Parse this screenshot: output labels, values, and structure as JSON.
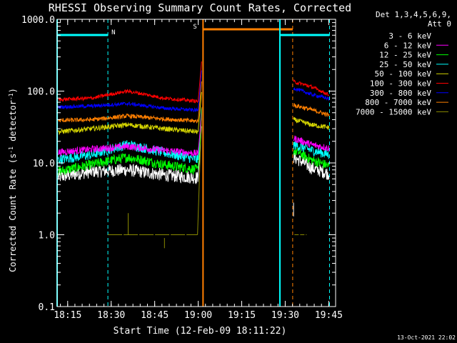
{
  "chart_data": {
    "type": "line",
    "title": "RHESSI Observing Summary Count Rates, Corrected",
    "xlabel": "Start Time (12-Feb-09 18:11:22)",
    "ylabel": "Corrected Count Rate (s⁻¹ detector⁻¹)",
    "ylabel_parts": {
      "prefix": "Corrected Count Rate (s",
      "exp1": "-1",
      "mid": " detector",
      "exp2": "-1",
      "suffix": ")"
    },
    "y_scale": "log",
    "ylim": [
      0.1,
      1000
    ],
    "xlim_minutes": [
      0,
      96
    ],
    "x_ticks": [
      {
        "m": 3.633,
        "label": "18:15"
      },
      {
        "m": 18.633,
        "label": "18:30"
      },
      {
        "m": 33.633,
        "label": "18:45"
      },
      {
        "m": 48.633,
        "label": "19:00"
      },
      {
        "m": 63.633,
        "label": "19:15"
      },
      {
        "m": 78.633,
        "label": "19:30"
      },
      {
        "m": 93.633,
        "label": "19:45"
      }
    ],
    "y_ticks": [
      {
        "v": 0.1,
        "label": "0.1"
      },
      {
        "v": 1,
        "label": "1.0"
      },
      {
        "v": 10,
        "label": "10.0"
      },
      {
        "v": 100,
        "label": "100.0"
      },
      {
        "v": 1000,
        "label": "1000.0"
      }
    ],
    "legend": {
      "position": "top-right",
      "header1": "Det 1,3,4,5,6,9,",
      "header2": "Att 0",
      "entries": [
        {
          "label": "3 - 6 keV",
          "color": "#ffffff"
        },
        {
          "label": "6 - 12 keV",
          "color": "#ff00ff"
        },
        {
          "label": "12 - 25 keV",
          "color": "#00ff00"
        },
        {
          "label": "25 - 50 keV",
          "color": "#00ffff"
        },
        {
          "label": "50 - 100 keV",
          "color": "#d4d400"
        },
        {
          "label": "100 - 300 keV",
          "color": "#ff0000"
        },
        {
          "label": "300 - 800 keV",
          "color": "#0000ff"
        },
        {
          "label": "800 - 7000 keV",
          "color": "#ff7f00"
        },
        {
          "label": "7000 - 15000 keV",
          "color": "#8b8b00"
        }
      ]
    },
    "series": [
      {
        "color": "#000000",
        "base": [
          6.3,
          7.6,
          8.0,
          6.8,
          6.2
        ],
        "noise": 0.09,
        "post": [
          12,
          8.5,
          7.0
        ]
      },
      {
        "color": "#00ff00",
        "base": [
          7.5,
          9.5,
          12,
          9.5,
          8.0
        ],
        "noise": 0.07,
        "post": [
          15,
          11,
          9
        ]
      },
      {
        "color": "#00ffff",
        "base": [
          11,
          13,
          18,
          14,
          11
        ],
        "noise": 0.07,
        "post": [
          18,
          15,
          13
        ]
      },
      {
        "color": "#ff00ff",
        "base": [
          14,
          15.5,
          17,
          15,
          13.5
        ],
        "noise": 0.05,
        "post": [
          22,
          18,
          16
        ]
      },
      {
        "color": "#d4d400",
        "base": [
          27,
          30,
          34,
          30,
          27
        ],
        "noise": 0.035,
        "post": [
          40,
          34,
          31
        ]
      },
      {
        "color": "#ff7f00",
        "base": [
          39,
          40,
          45,
          41,
          38
        ],
        "noise": 0.03,
        "post": [
          64,
          55,
          46
        ]
      },
      {
        "color": "#0000ff",
        "base": [
          60,
          62,
          67,
          58,
          54
        ],
        "noise": 0.025,
        "post": [
          110,
          90,
          78
        ]
      },
      {
        "color": "#ff0000",
        "base": [
          76,
          80,
          100,
          80,
          72
        ],
        "noise": 0.025,
        "post": [
          135,
          115,
          88
        ]
      }
    ],
    "flat_series": {
      "color": "#8b8b00",
      "value": 1.0
    },
    "pre_end_minute": 49.9,
    "post_start_minute": 81.5,
    "post_end_minute": 93.8,
    "intervals": [
      {
        "type": "night",
        "label": "N",
        "color": "#00ffff",
        "start": 0,
        "end": 17.5,
        "dashed_end": true
      },
      {
        "type": "saa",
        "label": "S",
        "color": "#ff7f00",
        "start": 50.3,
        "end": 81.2,
        "dashed_end": true
      },
      {
        "type": "night",
        "label": "",
        "color": "#00ffff",
        "start": 76.8,
        "end": 93.9,
        "dashed_end": true
      }
    ]
  },
  "timestamp": "13-Oct-2021 22:02"
}
